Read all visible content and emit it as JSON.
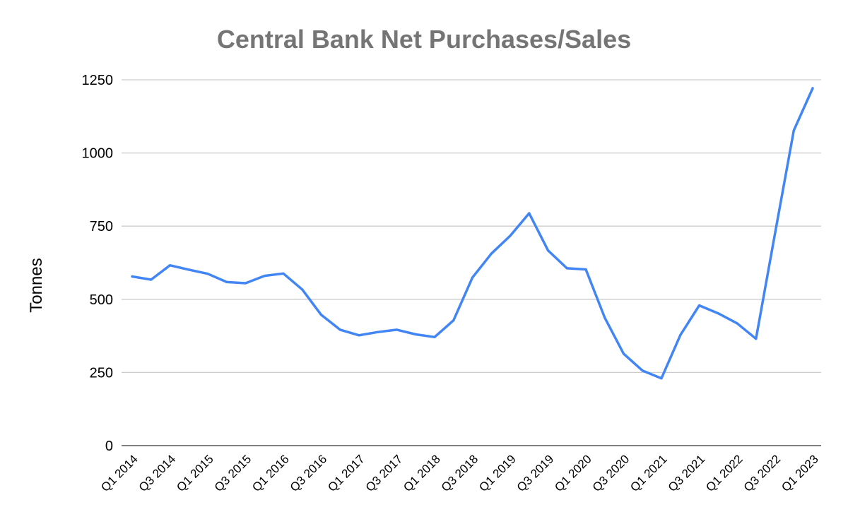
{
  "chart_data": {
    "type": "line",
    "title": "Central Bank Net Purchases/Sales",
    "ylabel": "Tonnes",
    "xlabel": "",
    "ylim": [
      0,
      1250
    ],
    "yticks": [
      0,
      250,
      500,
      750,
      1000,
      1250
    ],
    "grid": true,
    "legend": "none",
    "x": [
      "Q1 2014",
      "Q2 2014",
      "Q3 2014",
      "Q4 2014",
      "Q1 2015",
      "Q2 2015",
      "Q3 2015",
      "Q4 2015",
      "Q1 2016",
      "Q2 2016",
      "Q3 2016",
      "Q4 2016",
      "Q1 2017",
      "Q2 2017",
      "Q3 2017",
      "Q4 2017",
      "Q1 2018",
      "Q2 2018",
      "Q3 2018",
      "Q4 2018",
      "Q1 2019",
      "Q2 2019",
      "Q3 2019",
      "Q4 2019",
      "Q1 2020",
      "Q2 2020",
      "Q3 2020",
      "Q4 2020",
      "Q1 2021",
      "Q2 2021",
      "Q3 2021",
      "Q4 2021",
      "Q1 2022",
      "Q2 2022",
      "Q3 2022",
      "Q4 2022",
      "Q1 2023"
    ],
    "xtick_labels": [
      "Q1 2014",
      "Q3 2014",
      "Q1 2015",
      "Q3 2015",
      "Q1 2016",
      "Q3 2016",
      "Q1 2017",
      "Q3 2017",
      "Q1 2018",
      "Q3 2018",
      "Q1 2019",
      "Q3 2019",
      "Q1 2020",
      "Q3 2020",
      "Q1 2021",
      "Q3 2021",
      "Q1 2022",
      "Q3 2022",
      "Q1 2023"
    ],
    "series": [
      {
        "values": [
          578,
          567,
          616,
          601,
          587,
          559,
          555,
          580,
          588,
          533,
          447,
          396,
          377,
          388,
          396,
          380,
          371,
          428,
          574,
          656,
          717,
          794,
          667,
          606,
          602,
          437,
          314,
          256,
          230,
          378,
          479,
          452,
          418,
          365,
          722,
          1077,
          1221
        ]
      }
    ],
    "colors": {
      "line": "#4285f4",
      "title": "#757575",
      "grid": "#cccccc"
    }
  }
}
